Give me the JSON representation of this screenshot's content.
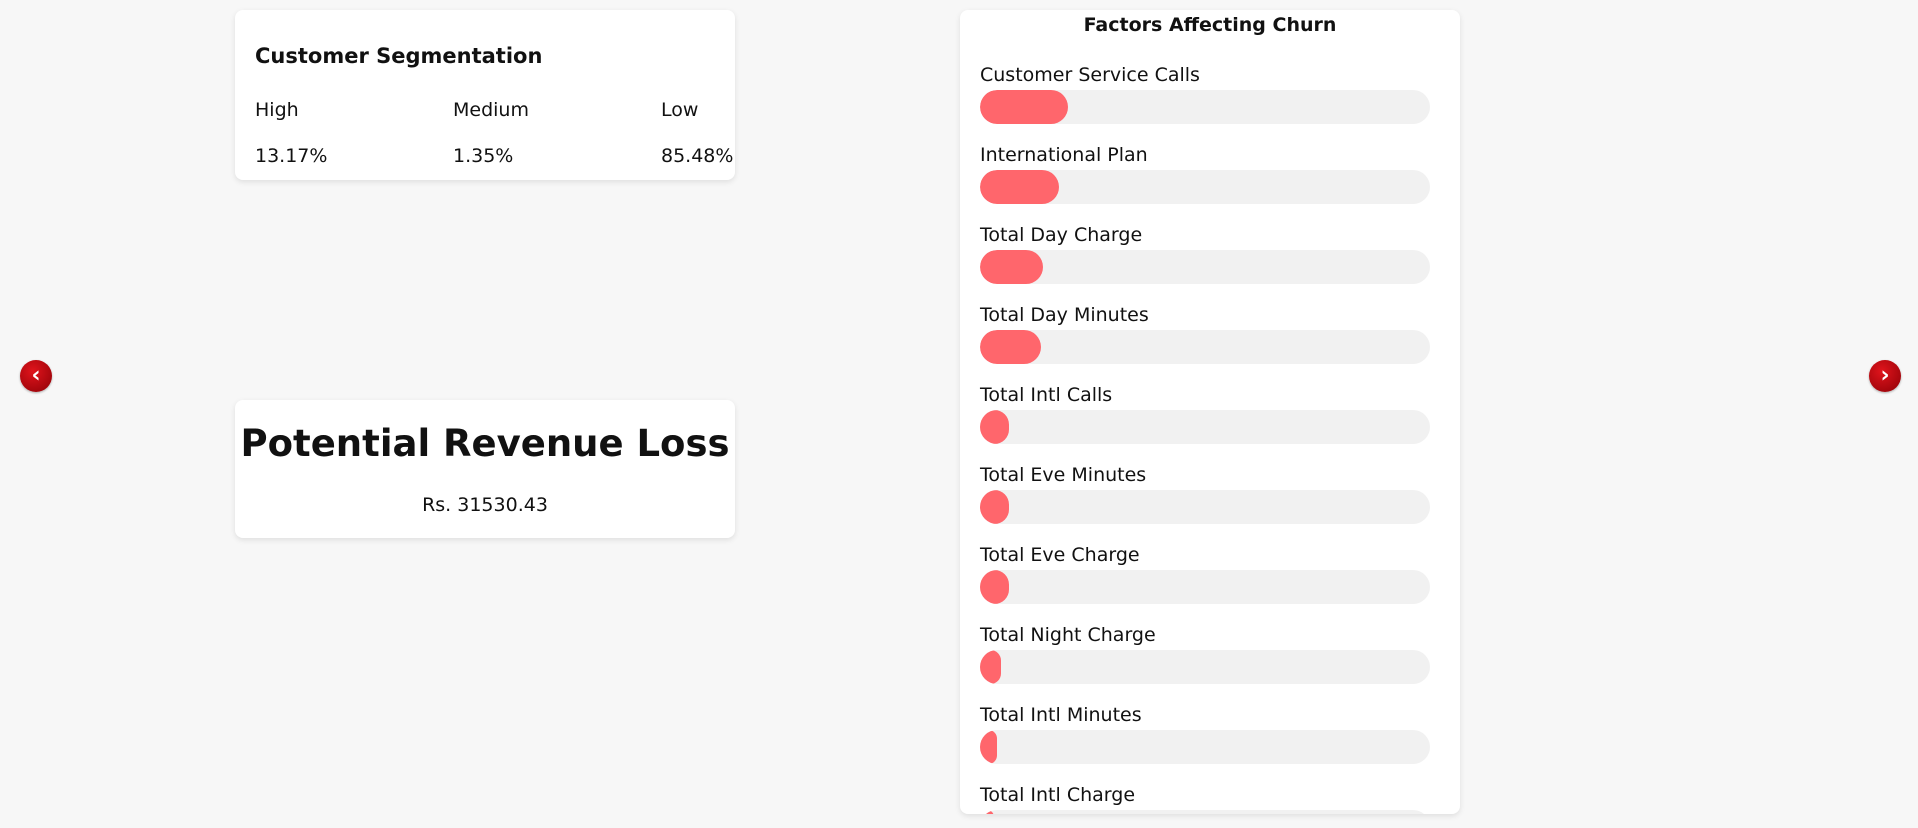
{
  "segmentation": {
    "title": "Customer Segmentation",
    "columns": [
      {
        "label": "High",
        "value": "13.17%"
      },
      {
        "label": "Medium",
        "value": "1.35%"
      },
      {
        "label": "Low",
        "value": "85.48%"
      }
    ]
  },
  "revenue": {
    "title": "Potential Revenue Loss",
    "value": "Rs. 31530.43"
  },
  "factors": {
    "title": "Factors Affecting Churn",
    "items": [
      {
        "label": "Customer Service Calls",
        "level": 0.195
      },
      {
        "label": "International Plan",
        "level": 0.175
      },
      {
        "label": "Total Day Charge",
        "level": 0.14
      },
      {
        "label": "Total Day Minutes",
        "level": 0.135
      },
      {
        "label": "Total Intl Calls",
        "level": 0.065
      },
      {
        "label": "Total Eve Minutes",
        "level": 0.065
      },
      {
        "label": "Total Eve Charge",
        "level": 0.065
      },
      {
        "label": "Total Night Charge",
        "level": 0.047
      },
      {
        "label": "Total Intl Minutes",
        "level": 0.038
      },
      {
        "label": "Total Intl Charge",
        "level": 0.03
      }
    ],
    "bar_color": "#ff666c",
    "track_color": "#f1f1f1"
  },
  "nav": {
    "prev_icon": "chevron-left-icon",
    "next_icon": "chevron-right-icon",
    "prev_glyph": "‹",
    "next_glyph": "›",
    "color": "#c0000a"
  }
}
